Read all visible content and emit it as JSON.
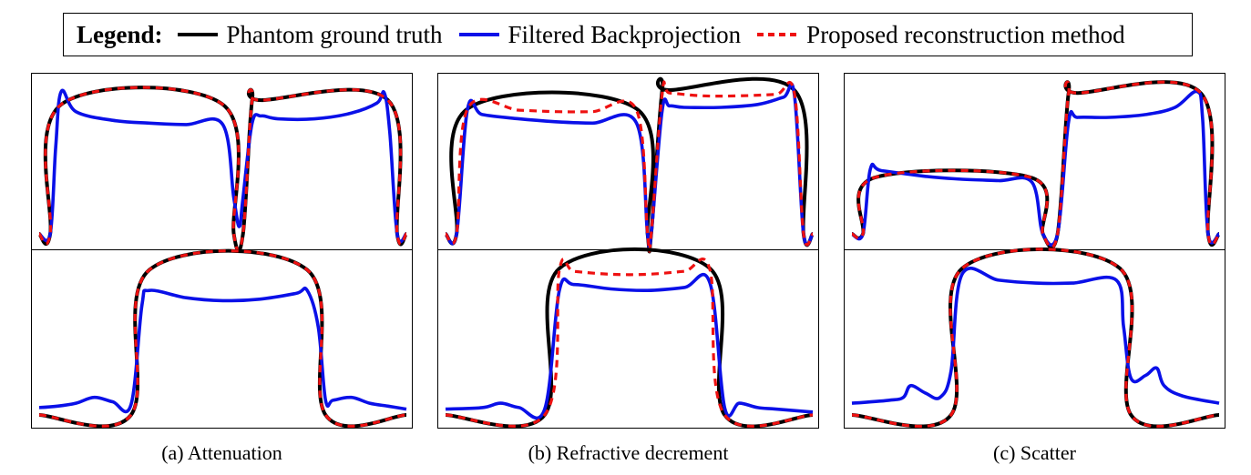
{
  "legend": {
    "title": "Legend:",
    "entries": [
      {
        "label": "Phantom ground truth",
        "color": "#000000",
        "style": "solid"
      },
      {
        "label": "Filtered Backprojection",
        "color": "#0a10e8",
        "style": "solid"
      },
      {
        "label": "Proposed reconstruction method",
        "color": "#ee1111",
        "style": "dashed"
      }
    ]
  },
  "captions": [
    "(a) Attenuation",
    "(b) Refractive decrement",
    "(c) Scatter"
  ],
  "colors": {
    "truth": "#000000",
    "fbp": "#0a10e8",
    "proposed": "#ee1111"
  },
  "chart_data": [
    {
      "type": "line",
      "panel": "a",
      "row": "top",
      "xlim": [
        0,
        1
      ],
      "ylim": [
        0,
        1
      ],
      "grid": false,
      "series": [
        {
          "name": "Phantom ground truth",
          "x": [
            0,
            0.03,
            0.06,
            0.5,
            0.53,
            0.555,
            0.58,
            0.605,
            0.95,
            0.975,
            1
          ],
          "y": [
            0,
            0,
            0.9,
            0.9,
            0,
            0,
            0.93,
            0.93,
            0.93,
            0,
            0
          ]
        },
        {
          "name": "Filtered Backprojection",
          "x": [
            0,
            0.03,
            0.045,
            0.06,
            0.1,
            0.2,
            0.3,
            0.4,
            0.5,
            0.53,
            0.545,
            0.555,
            0.58,
            0.605,
            0.65,
            0.75,
            0.85,
            0.92,
            0.94,
            0.955,
            0.975,
            1
          ],
          "y": [
            0,
            0,
            0.6,
            0.99,
            0.85,
            0.79,
            0.77,
            0.76,
            0.76,
            0.25,
            0.05,
            0.25,
            0.77,
            0.82,
            0.8,
            0.8,
            0.84,
            0.91,
            0.98,
            0.7,
            0,
            0
          ]
        },
        {
          "name": "Proposed reconstruction method",
          "x": [
            0,
            0.03,
            0.06,
            0.5,
            0.53,
            0.555,
            0.58,
            0.605,
            0.95,
            0.975,
            1
          ],
          "y": [
            0,
            0,
            0.9,
            0.9,
            0,
            0,
            0.93,
            0.93,
            0.93,
            0,
            0
          ]
        }
      ]
    },
    {
      "type": "line",
      "panel": "a",
      "row": "bottom",
      "xlim": [
        0,
        1
      ],
      "ylim": [
        0,
        1
      ],
      "grid": false,
      "series": [
        {
          "name": "Phantom ground truth",
          "x": [
            0,
            0.25,
            0.3,
            0.73,
            0.78,
            1
          ],
          "y": [
            0,
            0,
            0.99,
            0.99,
            0,
            0
          ]
        },
        {
          "name": "Filtered Backprojection",
          "x": [
            0,
            0.05,
            0.1,
            0.15,
            0.2,
            0.25,
            0.28,
            0.3,
            0.4,
            0.5,
            0.6,
            0.7,
            0.73,
            0.76,
            0.78,
            0.8,
            0.85,
            0.9,
            0.95,
            1
          ],
          "y": [
            0.05,
            0.06,
            0.08,
            0.12,
            0.09,
            0.07,
            0.75,
            0.85,
            0.8,
            0.78,
            0.79,
            0.83,
            0.85,
            0.6,
            0.1,
            0.1,
            0.12,
            0.08,
            0.06,
            0.04
          ]
        },
        {
          "name": "Proposed reconstruction method",
          "x": [
            0,
            0.25,
            0.3,
            0.73,
            0.78,
            1
          ],
          "y": [
            0,
            0,
            0.99,
            0.99,
            0,
            0
          ]
        }
      ]
    },
    {
      "type": "line",
      "panel": "b",
      "row": "top",
      "xlim": [
        0,
        1
      ],
      "ylim": [
        0,
        1
      ],
      "grid": false,
      "series": [
        {
          "name": "Phantom ground truth",
          "x": [
            0,
            0.03,
            0.06,
            0.52,
            0.55,
            0.56,
            0.59,
            0.61,
            0.95,
            0.975,
            1
          ],
          "y": [
            0,
            0,
            0.87,
            0.87,
            0,
            0,
            1.0,
            1.0,
            1.0,
            0,
            0
          ]
        },
        {
          "name": "Filtered Backprojection",
          "x": [
            0,
            0.03,
            0.06,
            0.1,
            0.2,
            0.3,
            0.4,
            0.52,
            0.55,
            0.56,
            0.59,
            0.61,
            0.65,
            0.75,
            0.85,
            0.92,
            0.95,
            0.975,
            1
          ],
          "y": [
            0,
            0,
            0.87,
            0.83,
            0.8,
            0.78,
            0.77,
            0.77,
            0,
            0,
            0.86,
            0.89,
            0.88,
            0.88,
            0.9,
            0.95,
            0.97,
            0,
            0
          ]
        },
        {
          "name": "Proposed reconstruction method",
          "x": [
            0,
            0.03,
            0.06,
            0.2,
            0.3,
            0.4,
            0.52,
            0.55,
            0.56,
            0.59,
            0.61,
            0.7,
            0.8,
            0.9,
            0.95,
            0.975,
            1
          ],
          "y": [
            0,
            0,
            0.87,
            0.86,
            0.85,
            0.85,
            0.86,
            0,
            0,
            0.98,
            0.98,
            0.96,
            0.96,
            0.97,
            0.98,
            0,
            0
          ]
        }
      ]
    },
    {
      "type": "line",
      "panel": "b",
      "row": "bottom",
      "xlim": [
        0,
        1
      ],
      "ylim": [
        0,
        1
      ],
      "grid": false,
      "series": [
        {
          "name": "Phantom ground truth",
          "x": [
            0,
            0.27,
            0.31,
            0.72,
            0.76,
            1
          ],
          "y": [
            0,
            0,
            1.0,
            1.0,
            0,
            0
          ]
        },
        {
          "name": "Filtered Backprojection",
          "x": [
            0,
            0.1,
            0.15,
            0.2,
            0.27,
            0.31,
            0.35,
            0.45,
            0.55,
            0.65,
            0.72,
            0.76,
            0.8,
            0.85,
            0.9,
            1
          ],
          "y": [
            0.04,
            0.05,
            0.08,
            0.05,
            0.04,
            0.85,
            0.89,
            0.86,
            0.85,
            0.87,
            0.9,
            0.05,
            0.08,
            0.05,
            0.04,
            0.02
          ]
        },
        {
          "name": "Proposed reconstruction method",
          "x": [
            0,
            0.27,
            0.31,
            0.35,
            0.45,
            0.55,
            0.65,
            0.72,
            0.76,
            1
          ],
          "y": [
            0,
            0,
            0.99,
            0.98,
            0.96,
            0.96,
            0.98,
            0.99,
            0,
            0
          ]
        }
      ]
    },
    {
      "type": "line",
      "panel": "c",
      "row": "top",
      "xlim": [
        0,
        1
      ],
      "ylim": [
        0,
        1
      ],
      "grid": false,
      "series": [
        {
          "name": "Phantom ground truth",
          "x": [
            0,
            0.03,
            0.06,
            0.49,
            0.52,
            0.56,
            0.59,
            0.615,
            0.95,
            0.97,
            1
          ],
          "y": [
            0,
            0,
            0.39,
            0.39,
            0,
            0,
            0.98,
            0.98,
            0.98,
            0,
            0
          ]
        },
        {
          "name": "Filtered Backprojection",
          "x": [
            0,
            0.03,
            0.05,
            0.08,
            0.2,
            0.3,
            0.4,
            0.49,
            0.52,
            0.56,
            0.59,
            0.615,
            0.7,
            0.8,
            0.88,
            0.94,
            0.955,
            0.97,
            1
          ],
          "y": [
            0,
            0,
            0.45,
            0.44,
            0.4,
            0.38,
            0.37,
            0.36,
            0,
            0,
            0.78,
            0.81,
            0.81,
            0.83,
            0.88,
            0.99,
            0.8,
            0,
            0
          ]
        },
        {
          "name": "Proposed reconstruction method",
          "x": [
            0,
            0.03,
            0.06,
            0.49,
            0.52,
            0.56,
            0.59,
            0.615,
            0.95,
            0.97,
            1
          ],
          "y": [
            0,
            0,
            0.39,
            0.39,
            0,
            0,
            0.98,
            0.98,
            0.98,
            0,
            0
          ]
        }
      ]
    },
    {
      "type": "line",
      "panel": "c",
      "row": "bottom",
      "xlim": [
        0,
        1
      ],
      "ylim": [
        0,
        1
      ],
      "grid": false,
      "series": [
        {
          "name": "Phantom ground truth",
          "x": [
            0,
            0.27,
            0.3,
            0.73,
            0.76,
            1
          ],
          "y": [
            0,
            0,
            1.0,
            1.0,
            0,
            0
          ]
        },
        {
          "name": "Filtered Backprojection",
          "x": [
            0,
            0.1,
            0.14,
            0.16,
            0.2,
            0.24,
            0.27,
            0.3,
            0.4,
            0.5,
            0.6,
            0.72,
            0.74,
            0.76,
            0.8,
            0.83,
            0.85,
            0.9,
            1
          ],
          "y": [
            0.08,
            0.1,
            0.12,
            0.2,
            0.15,
            0.12,
            0.3,
            0.96,
            0.92,
            0.9,
            0.9,
            0.92,
            0.6,
            0.25,
            0.27,
            0.32,
            0.2,
            0.13,
            0.08
          ]
        },
        {
          "name": "Proposed reconstruction method",
          "x": [
            0,
            0.27,
            0.3,
            0.73,
            0.76,
            1
          ],
          "y": [
            0,
            0,
            1.0,
            1.0,
            0,
            0
          ]
        }
      ]
    }
  ]
}
